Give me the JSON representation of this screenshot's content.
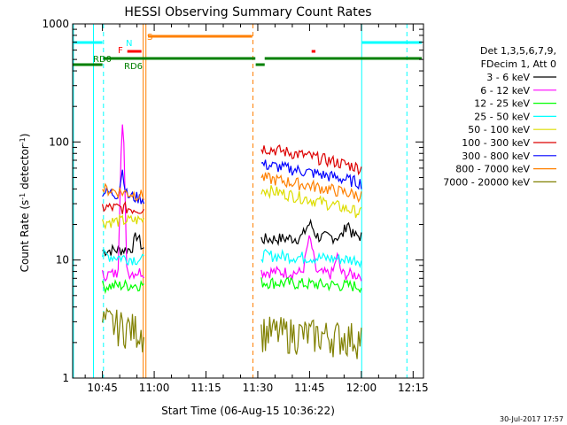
{
  "chart_data": {
    "type": "line",
    "title": "HESSI Observing Summary Count Rates",
    "xlabel": "Start Time (06-Aug-15 10:36:22)",
    "ylabel_main": "Count Rate (s",
    "ylabel_sup1": "-1",
    "ylabel_mid": " detector",
    "ylabel_sup2": "-1",
    "ylabel_end": ")",
    "xlim": [
      636.37,
      738
    ],
    "ylim": [
      1,
      1000
    ],
    "yscale": "log",
    "x_ticks": [
      {
        "value": 645,
        "label": "10:45"
      },
      {
        "value": 660,
        "label": "11:00"
      },
      {
        "value": 675,
        "label": "11:15"
      },
      {
        "value": 690,
        "label": "11:30"
      },
      {
        "value": 705,
        "label": "11:45"
      },
      {
        "value": 720,
        "label": "12:00"
      },
      {
        "value": 735,
        "label": "12:15"
      }
    ],
    "y_ticks": [
      {
        "value": 1,
        "label": "1"
      },
      {
        "value": 10,
        "label": "10"
      },
      {
        "value": 100,
        "label": "100"
      },
      {
        "value": 1000,
        "label": "1000"
      }
    ],
    "legend_header": [
      "Det 1,3,5,6,7,9,",
      "FDecim 1, Att 0"
    ],
    "legend_placement": "right",
    "series": [
      {
        "name": "3 - 6 keV",
        "color": "#000000",
        "a": [
          12,
          12.5
        ],
        "b": [
          15,
          16
        ]
      },
      {
        "name": "6 - 12 keV",
        "color": "#ff00ff",
        "a": [
          7.5,
          8
        ],
        "b": [
          8,
          7.5
        ]
      },
      {
        "name": "12 - 25 keV",
        "color": "#00ff00",
        "a": [
          6,
          6.2
        ],
        "b": [
          6.5,
          6
        ]
      },
      {
        "name": "25 - 50 keV",
        "color": "#00ffff",
        "a": [
          11,
          10
        ],
        "b": [
          11,
          10
        ]
      },
      {
        "name": "50 - 100 keV",
        "color": "#dddd00",
        "a": [
          21,
          22
        ],
        "b": [
          40,
          25
        ]
      },
      {
        "name": "100 - 300 keV",
        "color": "#dd0000",
        "a": [
          28,
          27
        ],
        "b": [
          90,
          60
        ]
      },
      {
        "name": "300 - 800 keV",
        "color": "#0000ff",
        "a": [
          38,
          33
        ],
        "b": [
          65,
          45
        ]
      },
      {
        "name": "800 - 7000 keV",
        "color": "#ff8000",
        "a": [
          40,
          35
        ],
        "b": [
          50,
          35
        ]
      },
      {
        "name": "7000 - 20000 keV",
        "color": "#808000",
        "a": [
          3,
          2.5
        ],
        "b": [
          2.5,
          2.2
        ]
      }
    ],
    "segment_a": [
      645,
      657
    ],
    "segment_b": [
      691,
      720
    ],
    "flag_labels": [
      {
        "text": "N",
        "color": "#00ffff"
      },
      {
        "text": "S",
        "color": "#ff8000"
      },
      {
        "text": "F",
        "color": "#ff0000"
      },
      {
        "text": "RD0",
        "color": "#008000"
      },
      {
        "text": "RD6",
        "color": "#008000"
      }
    ],
    "colors": {
      "orange": "#ff8000",
      "cyan": "#00ffff",
      "green": "#008000",
      "red": "#ff0000"
    }
  },
  "footer_date": "30-Jul-2017 17:57"
}
